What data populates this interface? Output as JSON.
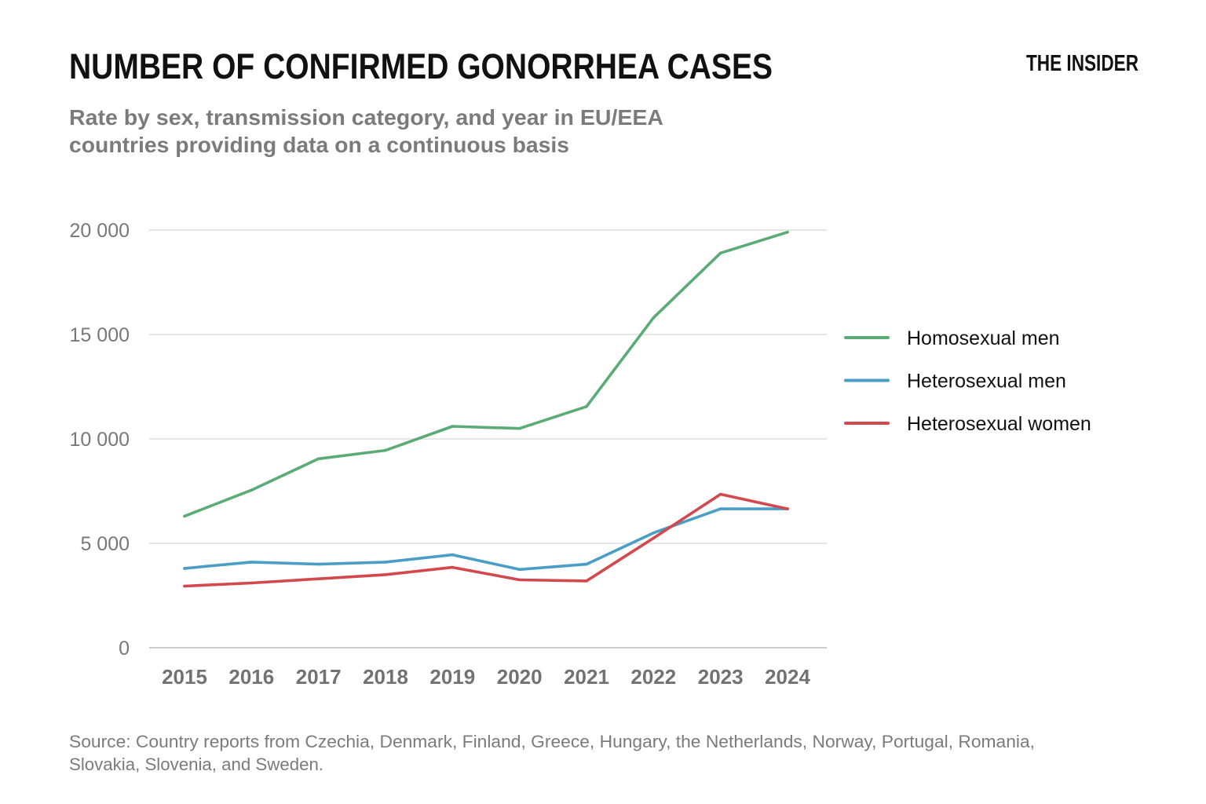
{
  "brand": "THE INSIDER",
  "chart_data": {
    "type": "line",
    "title": "NUMBER OF CONFIRMED GONORRHEA CASES",
    "subtitle_lines": [
      "Rate by sex, transmission category, and year in EU/EEA",
      "countries providing data on a continuous basis"
    ],
    "xlabel": "",
    "ylabel": "",
    "categories": [
      "2015",
      "2016",
      "2017",
      "2018",
      "2019",
      "2020",
      "2021",
      "2022",
      "2023",
      "2024"
    ],
    "y_ticks": [
      0,
      5000,
      10000,
      15000,
      20000
    ],
    "y_tick_labels": [
      "0",
      "5 000",
      "10 000",
      "15 000",
      "20 000"
    ],
    "ylim": [
      0,
      20000
    ],
    "grid": true,
    "legend_position": "right",
    "series": [
      {
        "name": "Homosexual men",
        "color": "#5bab77",
        "values": [
          6300,
          7550,
          9050,
          9450,
          10600,
          10500,
          11550,
          15800,
          18900,
          19900
        ]
      },
      {
        "name": "Heterosexual men",
        "color": "#4a9ec6",
        "values": [
          3800,
          4100,
          4000,
          4100,
          4450,
          3750,
          4000,
          5500,
          6650,
          6650
        ]
      },
      {
        "name": "Heterosexual women",
        "color": "#d3484d",
        "values": [
          2950,
          3100,
          3300,
          3500,
          3850,
          3250,
          3200,
          5250,
          7350,
          6650
        ]
      }
    ],
    "source_lines": [
      "Source: Country reports from Czechia, Denmark, Finland, Greece, Hungary, the Netherlands, Norway, Portugal, Romania,",
      "Slovakia, Slovenia, and Sweden."
    ]
  }
}
